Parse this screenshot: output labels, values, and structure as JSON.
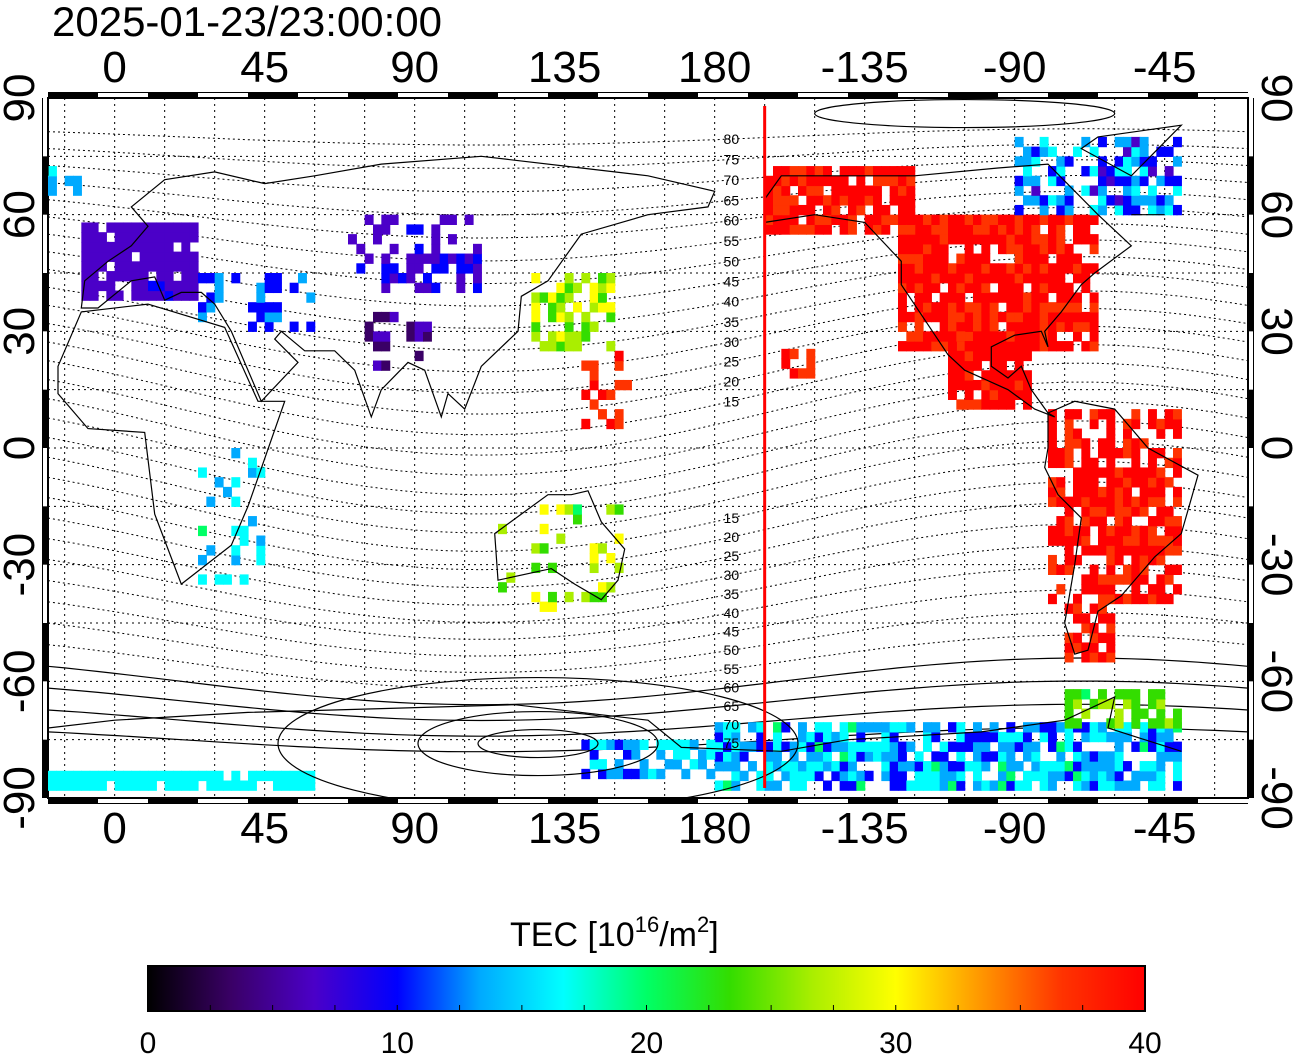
{
  "title": "2025-01-23/23:00:00",
  "map": {
    "lon_ticks_top": [
      "0",
      "45",
      "90",
      "135",
      "180",
      "-135",
      "-90",
      "-45"
    ],
    "lon_ticks_bottom": [
      "0",
      "45",
      "90",
      "135",
      "180",
      "-135",
      "-90",
      "-45"
    ],
    "lat_ticks_left": [
      "90",
      "60",
      "30",
      "0",
      "-30",
      "-60",
      "-90"
    ],
    "lat_ticks_right": [
      "90",
      "60",
      "30",
      "0",
      "-30",
      "-60",
      "-90"
    ],
    "lon_range": [
      -20,
      340
    ],
    "lat_range": [
      -90,
      90
    ],
    "grid": "dotted",
    "terminator_longitude": -165,
    "terminator_color": "#ff0000",
    "magnetic_latitude_labels_north": [
      "80",
      "75",
      "70",
      "65",
      "60",
      "55",
      "50",
      "45",
      "40",
      "35",
      "30",
      "25",
      "20",
      "15"
    ],
    "magnetic_latitude_labels_south": [
      "15",
      "20",
      "25",
      "30",
      "35",
      "40",
      "45",
      "50",
      "55",
      "60",
      "65",
      "70",
      "75"
    ]
  },
  "colorbar": {
    "label_main": "TEC  [10",
    "label_sup1": "16",
    "label_mid": "/m",
    "label_sup2": "2",
    "label_end": "]",
    "tick_labels": [
      "0",
      "10",
      "20",
      "30",
      "40"
    ],
    "min": 0,
    "max": 40,
    "colors": [
      "#000000",
      "#3a0066",
      "#4b00c8",
      "#0000ff",
      "#00aaff",
      "#00ffff",
      "#00ff66",
      "#33dd00",
      "#aaee00",
      "#ffff00",
      "#ff9900",
      "#ff3300",
      "#ff0000"
    ]
  },
  "tec_regions": [
    {
      "name": "north-america",
      "tec": 39,
      "color": "#ff1a00"
    },
    {
      "name": "south-america",
      "tec": 39,
      "color": "#ff1a00"
    },
    {
      "name": "pacific-central",
      "tec": 38,
      "color": "#ff2200"
    },
    {
      "name": "east-asia",
      "tec": 26,
      "color": "#88e800"
    },
    {
      "name": "europe",
      "tec": 7,
      "color": "#4400cc"
    },
    {
      "name": "central-asia",
      "tec": 8,
      "color": "#3a10e0"
    },
    {
      "name": "antarctica-east",
      "tec": 14,
      "color": "#0088ff"
    },
    {
      "name": "antarctica-south-band",
      "tec": 16,
      "color": "#00ffff"
    },
    {
      "name": "arctic-canada",
      "tec": 12,
      "color": "#1050ff"
    },
    {
      "name": "africa-east",
      "tec": 11,
      "color": "#1a3aff"
    }
  ]
}
